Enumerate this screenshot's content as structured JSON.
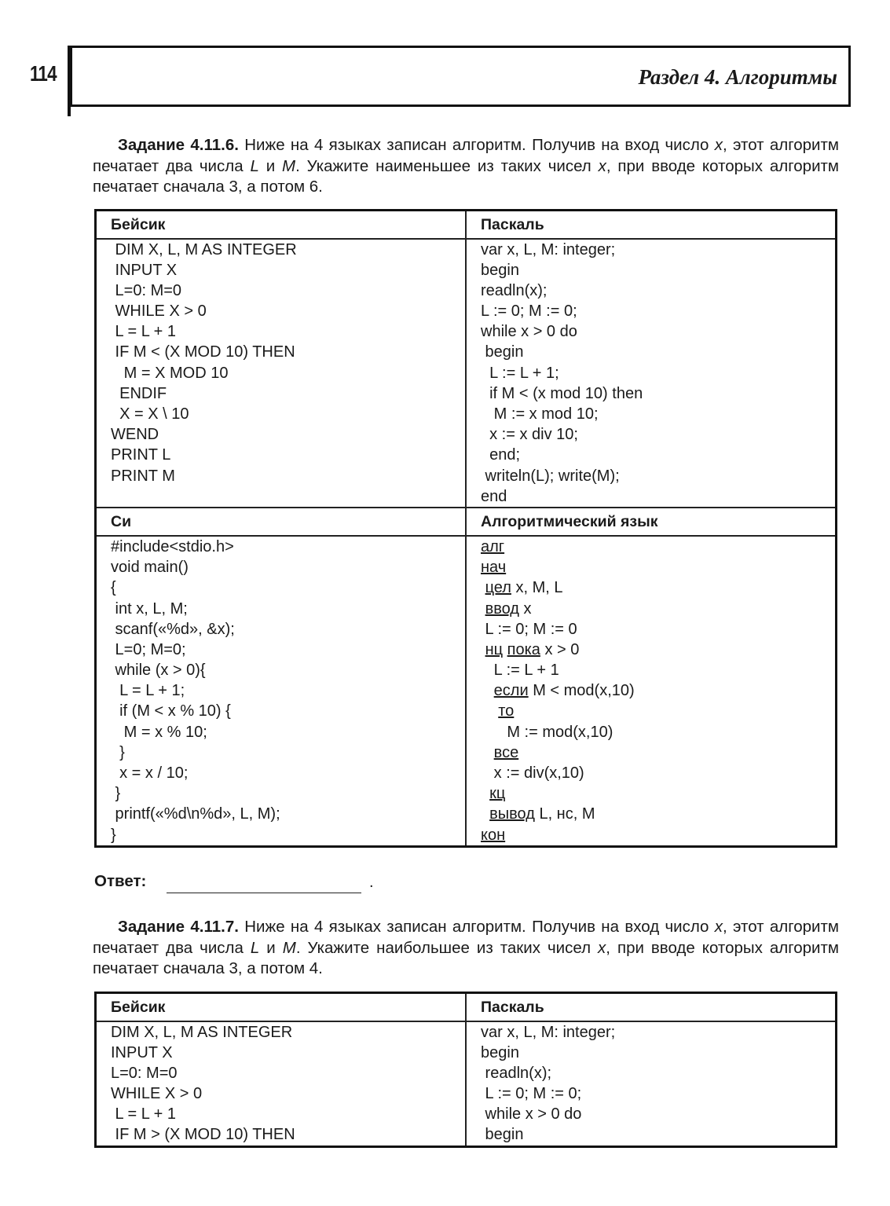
{
  "header": {
    "page_number": "114",
    "section_title": "Раздел 4. Алгоритмы"
  },
  "task1": {
    "label": "Задание 4.11.6.",
    "text_parts": [
      " Ниже на 4 языках записан алгоритм. Получив на вход число ",
      "x",
      ", этот алгоритм печатает два числа ",
      "L",
      " и ",
      "M",
      ". Укажите наименьшее из таких чисел ",
      "x",
      ", при вводе которых алгоритм печатает сначала 3, а потом 6."
    ],
    "table": {
      "basic_header": "Бейсик",
      "pascal_header": "Паскаль",
      "c_header": "Си",
      "alg_header": "Алгоритмический язык",
      "basic": [
        [
          {
            "t": " DIM X, L, M AS INTEGER"
          }
        ],
        [
          {
            "t": " INPUT X"
          }
        ],
        [
          {
            "t": " L=0: M=0"
          }
        ],
        [
          {
            "t": " WHILE X > 0"
          }
        ],
        [
          {
            "t": " L = L + 1"
          }
        ],
        [
          {
            "t": " IF M < (X MOD 10) THEN"
          }
        ],
        [
          {
            "t": "   M = X MOD 10"
          }
        ],
        [
          {
            "t": "  ENDIF"
          }
        ],
        [
          {
            "t": "  X = X \\ 10"
          }
        ],
        [
          {
            "t": "WEND"
          }
        ],
        [
          {
            "t": "PRINT L"
          }
        ],
        [
          {
            "t": "PRINT M"
          }
        ]
      ],
      "pascal": [
        [
          {
            "t": "var x, L, M: integer;"
          }
        ],
        [
          {
            "t": "begin"
          }
        ],
        [
          {
            "t": "readln(x);"
          }
        ],
        [
          {
            "t": "L := 0; M := 0;"
          }
        ],
        [
          {
            "t": "while x > 0 do"
          }
        ],
        [
          {
            "t": " begin"
          }
        ],
        [
          {
            "t": "  L := L + 1;"
          }
        ],
        [
          {
            "t": "  if M < (x mod 10) then"
          }
        ],
        [
          {
            "t": "   M := x mod 10;"
          }
        ],
        [
          {
            "t": "  x := x div 10;"
          }
        ],
        [
          {
            "t": "  end;"
          }
        ],
        [
          {
            "t": " writeln(L); write(M);"
          }
        ],
        [
          {
            "t": "end"
          }
        ]
      ],
      "c": [
        [
          {
            "t": "#include<stdio.h>"
          }
        ],
        [
          {
            "t": "void main()"
          }
        ],
        [
          {
            "t": "{"
          }
        ],
        [
          {
            "t": " int x, L, M;"
          }
        ],
        [
          {
            "t": " scanf(«%d», &x);"
          }
        ],
        [
          {
            "t": " L=0; M=0;"
          }
        ],
        [
          {
            "t": " while (x > 0){"
          }
        ],
        [
          {
            "t": "  L = L + 1;"
          }
        ],
        [
          {
            "t": "  if (M < x % 10) {"
          }
        ],
        [
          {
            "t": "   M = x % 10;"
          }
        ],
        [
          {
            "t": "  }"
          }
        ],
        [
          {
            "t": "  x = x / 10;"
          }
        ],
        [
          {
            "t": " }"
          }
        ],
        [
          {
            "t": " printf(«%d\\n%d», L, M);"
          }
        ],
        [
          {
            "t": "}"
          }
        ]
      ],
      "alg": [
        [
          {
            "t": "алг",
            "u": true
          }
        ],
        [
          {
            "t": "нач",
            "u": true
          }
        ],
        [
          {
            "t": " "
          },
          {
            "t": "цел",
            "u": true
          },
          {
            "t": " x, M, L"
          }
        ],
        [
          {
            "t": " "
          },
          {
            "t": "ввод",
            "u": true
          },
          {
            "t": " x"
          }
        ],
        [
          {
            "t": " L := 0; M := 0"
          }
        ],
        [
          {
            "t": " "
          },
          {
            "t": "нц",
            "u": true
          },
          {
            "t": " "
          },
          {
            "t": "пока",
            "u": true
          },
          {
            "t": " x > 0"
          }
        ],
        [
          {
            "t": "   L := L + 1"
          }
        ],
        [
          {
            "t": "   "
          },
          {
            "t": "если",
            "u": true
          },
          {
            "t": " M < mod(x,10)"
          }
        ],
        [
          {
            "t": "    "
          },
          {
            "t": "то",
            "u": true
          }
        ],
        [
          {
            "t": "      M := mod(x,10)"
          }
        ],
        [
          {
            "t": "   "
          },
          {
            "t": "все",
            "u": true
          }
        ],
        [
          {
            "t": "   x := div(x,10)"
          }
        ],
        [
          {
            "t": "  "
          },
          {
            "t": "кц",
            "u": true
          }
        ],
        [
          {
            "t": "  "
          },
          {
            "t": "вывод",
            "u": true
          },
          {
            "t": " L, нс, M"
          }
        ],
        [
          {
            "t": "кон",
            "u": true
          }
        ]
      ]
    }
  },
  "answer_label": "Ответ:",
  "answer_value": "",
  "task2": {
    "label": "Задание 4.11.7.",
    "text_parts": [
      " Ниже на 4 языках записан алгоритм. Получив на вход число ",
      "x",
      ", этот алгоритм печатает два числа ",
      "L",
      " и ",
      "M",
      ". Укажите наибольшее из таких чисел ",
      "x",
      ", при вводе которых алгоритм печатает сначала 3, а потом 4."
    ],
    "table": {
      "basic_header": "Бейсик",
      "pascal_header": "Паскаль",
      "basic": [
        [
          {
            "t": "DIM X, L, M AS INTEGER"
          }
        ],
        [
          {
            "t": "INPUT X"
          }
        ],
        [
          {
            "t": "L=0: M=0"
          }
        ],
        [
          {
            "t": "WHILE X > 0"
          }
        ],
        [
          {
            "t": " L = L + 1"
          }
        ],
        [
          {
            "t": " IF M > (X MOD 10) THEN"
          }
        ]
      ],
      "pascal": [
        [
          {
            "t": "var x, L, M: integer;"
          }
        ],
        [
          {
            "t": "begin"
          }
        ],
        [
          {
            "t": " readln(x);"
          }
        ],
        [
          {
            "t": " L := 0; M := 0;"
          }
        ],
        [
          {
            "t": " while x > 0 do"
          }
        ],
        [
          {
            "t": " begin"
          }
        ]
      ]
    }
  }
}
